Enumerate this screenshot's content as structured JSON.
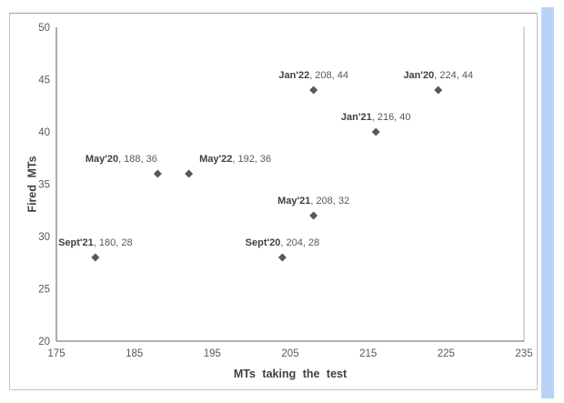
{
  "chart_data": {
    "type": "scatter",
    "title": "",
    "xlabel": "MTs taking the test",
    "ylabel": "Fired MTs",
    "xlim": [
      175,
      235
    ],
    "ylim": [
      20,
      50
    ],
    "x_ticks": [
      175,
      185,
      195,
      205,
      215,
      225,
      235
    ],
    "y_ticks": [
      20,
      25,
      30,
      35,
      40,
      45,
      50
    ],
    "grid": false,
    "legend": "none",
    "marker": {
      "shape": "diamond",
      "color": "#595959",
      "size": 9
    },
    "label_format": "{name}, {x}, {y}",
    "points": [
      {
        "name": "Sept'21",
        "x": 180,
        "y": 28,
        "label_dx": 0
      },
      {
        "name": "May'20",
        "x": 188,
        "y": 36,
        "label_dx": -40
      },
      {
        "name": "May'22",
        "x": 192,
        "y": 36,
        "label_dx": 51
      },
      {
        "name": "Sept'20",
        "x": 204,
        "y": 28,
        "label_dx": 0
      },
      {
        "name": "May'21",
        "x": 208,
        "y": 32,
        "label_dx": 0
      },
      {
        "name": "Jan'22",
        "x": 208,
        "y": 44,
        "label_dx": 0
      },
      {
        "name": "Jan'21",
        "x": 216,
        "y": 40,
        "label_dx": 0
      },
      {
        "name": "Jan'20",
        "x": 224,
        "y": 44,
        "label_dx": 0
      }
    ]
  },
  "colors": {
    "axis_line": "#7f7f7f",
    "plot_right_border": "#b3b3b3",
    "chart_border": "#c4c4c4",
    "chart_border_top": "#9e9e9e",
    "tick_text": "#595959",
    "label_name_text": "#3f3f3f",
    "label_value_text": "#595959",
    "axis_title_text": "#404040",
    "marker": "#595959",
    "highlight_bar": "#b9d3f8",
    "background": "#ffffff"
  }
}
